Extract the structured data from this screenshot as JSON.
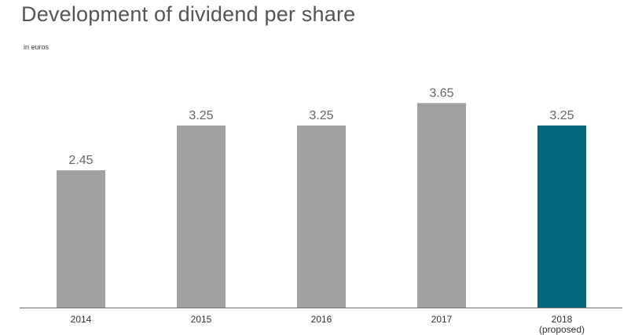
{
  "chart_data": {
    "type": "bar",
    "title": "Development of dividend per share",
    "subtitle": "in euros",
    "categories": [
      [
        "2014"
      ],
      [
        "2015"
      ],
      [
        "2016"
      ],
      [
        "2017"
      ],
      [
        "2018",
        "(proposed)"
      ]
    ],
    "values": [
      2.45,
      3.25,
      3.25,
      3.65,
      3.25
    ],
    "value_labels": [
      "2.45",
      "3.25",
      "3.25",
      "3.65",
      "3.25"
    ],
    "bar_colors": [
      "#a0a0a0",
      "#a0a0a0",
      "#a0a0a0",
      "#a0a0a0",
      "#02677c"
    ],
    "ylim": [
      0,
      5.5
    ],
    "grid": false,
    "legend": "none"
  }
}
